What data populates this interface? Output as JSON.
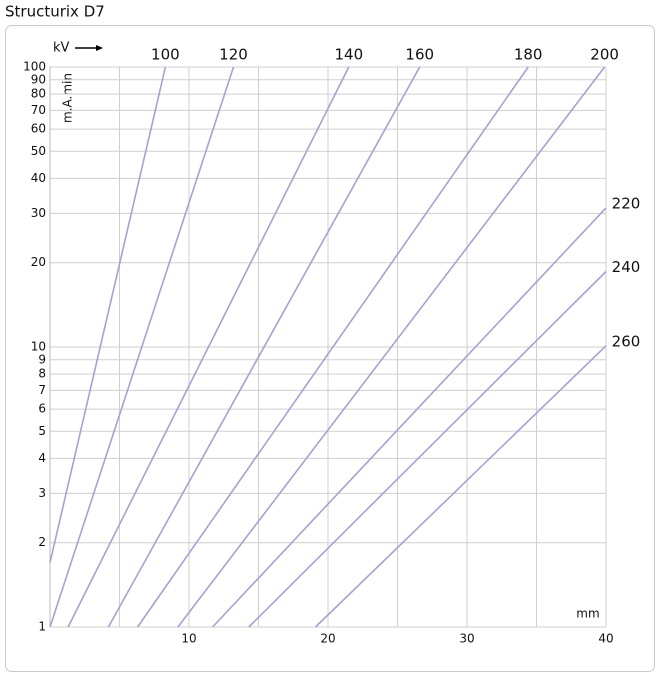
{
  "chart_data": {
    "type": "line",
    "title": "Structurix D7",
    "series_axis_label": "kV",
    "y_label": "m.A.min",
    "x_label": "mm",
    "log_y": true,
    "grid": true,
    "xlim": [
      0,
      40
    ],
    "ylim": [
      1,
      100
    ],
    "xticks": [
      10,
      20,
      30,
      40
    ],
    "xminor": [
      5,
      15,
      25,
      35
    ],
    "yticks": [
      1,
      2,
      3,
      4,
      5,
      6,
      7,
      8,
      9,
      10,
      20,
      30,
      40,
      50,
      60,
      70,
      80,
      90,
      100
    ],
    "series": [
      {
        "name": "100",
        "color": "#a3a3d3",
        "x": [
          0,
          8.3
        ],
        "values": [
          1.7,
          100
        ]
      },
      {
        "name": "120",
        "color": "#a3a3d3",
        "x": [
          0,
          13.2
        ],
        "values": [
          1,
          100
        ]
      },
      {
        "name": "140",
        "color": "#a3a3d3",
        "x": [
          1.3,
          21.5
        ],
        "values": [
          1,
          100
        ]
      },
      {
        "name": "160",
        "color": "#a3a3d3",
        "x": [
          4.2,
          26.6
        ],
        "values": [
          1,
          100
        ]
      },
      {
        "name": "180",
        "color": "#a3a3d3",
        "x": [
          6.3,
          34.4
        ],
        "values": [
          1,
          100
        ]
      },
      {
        "name": "200",
        "color": "#a3a3d3",
        "x": [
          9.2,
          39.9
        ],
        "values": [
          1,
          100
        ]
      },
      {
        "name": "220",
        "color": "#a3a3d3",
        "x": [
          11.7,
          40
        ],
        "values": [
          1,
          31.4
        ]
      },
      {
        "name": "240",
        "color": "#a3a3d3",
        "x": [
          14.3,
          40
        ],
        "values": [
          1,
          18.6
        ]
      },
      {
        "name": "260",
        "color": "#a3a3d3",
        "x": [
          19.1,
          40
        ],
        "values": [
          1,
          10.1
        ]
      }
    ]
  }
}
